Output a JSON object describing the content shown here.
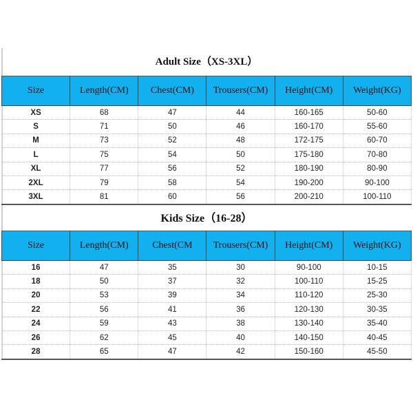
{
  "adult": {
    "title": "Adult Size（XS-3XL）",
    "headers": [
      "Size",
      "Length(CM)",
      "Chest(CM)",
      "Trousers(CM)",
      "Height(CM)",
      "Weight(KG)"
    ],
    "rows": [
      [
        "XS",
        "68",
        "47",
        "44",
        "160-165",
        "50-60"
      ],
      [
        "S",
        "71",
        "50",
        "46",
        "160-170",
        "55-60"
      ],
      [
        "M",
        "73",
        "52",
        "48",
        "172-175",
        "60-70"
      ],
      [
        "L",
        "75",
        "54",
        "50",
        "175-180",
        "70-80"
      ],
      [
        "XL",
        "77",
        "56",
        "52",
        "180-190",
        "80-90"
      ],
      [
        "2XL",
        "79",
        "58",
        "54",
        "190-200",
        "90-100"
      ],
      [
        "3XL",
        "81",
        "60",
        "56",
        "200-210",
        "100-110"
      ]
    ]
  },
  "kids": {
    "title": "Kids Size（16-28）",
    "headers": [
      "Size",
      "Length(CM)",
      "Chest(CM",
      "Trousers(CM)",
      "Height(CM)",
      "Weight(KG)"
    ],
    "rows": [
      [
        "16",
        "47",
        "35",
        "30",
        "90-100",
        "10-15"
      ],
      [
        "18",
        "50",
        "37",
        "32",
        "100-110",
        "15-25"
      ],
      [
        "20",
        "53",
        "39",
        "34",
        "110-120",
        "25-30"
      ],
      [
        "22",
        "56",
        "41",
        "36",
        "120-130",
        "30-35"
      ],
      [
        "24",
        "59",
        "43",
        "38",
        "130-140",
        "35-40"
      ],
      [
        "26",
        "62",
        "45",
        "40",
        "140-150",
        "40-45"
      ],
      [
        "28",
        "65",
        "47",
        "42",
        "150-160",
        "45-50"
      ]
    ]
  },
  "colors": {
    "header_bg": "#12b0ef"
  }
}
